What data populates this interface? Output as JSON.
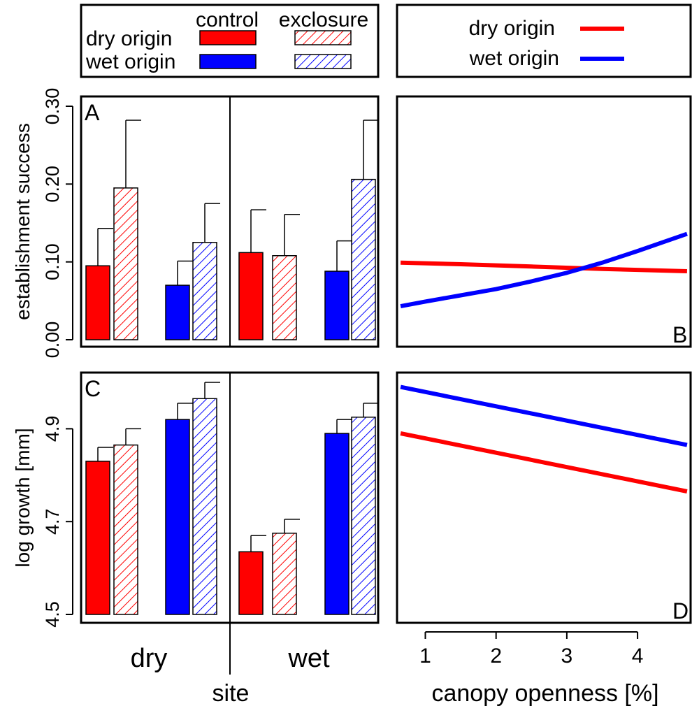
{
  "colors": {
    "dry": "#ff0000",
    "wet": "#0000ff"
  },
  "legend_left": {
    "col_control": "control",
    "col_exclosure": "exclosure",
    "row_dry": "dry origin",
    "row_wet": "wet origin"
  },
  "legend_right": {
    "row_dry": "dry origin",
    "row_wet": "wet origin"
  },
  "chart_data": [
    {
      "panel": "A",
      "type": "bar",
      "ylabel": "establishment success",
      "ylim": [
        0,
        0.3
      ],
      "yticks": [
        "0.00",
        "0.10",
        "0.20",
        "0.30"
      ],
      "yticks_values": [
        0,
        0.1,
        0.2,
        0.3
      ],
      "sites": [
        "dry",
        "wet"
      ],
      "groups": [
        "dry origin control",
        "dry origin exclosure",
        "wet origin control",
        "wet origin exclosure"
      ],
      "values": [
        [
          0.095,
          0.195,
          0.07,
          0.125
        ],
        [
          0.112,
          0.108,
          0.088,
          0.206
        ]
      ],
      "upper_error": [
        [
          0.143,
          0.282,
          0.101,
          0.175
        ],
        [
          0.167,
          0.161,
          0.127,
          0.282
        ]
      ]
    },
    {
      "panel": "B",
      "type": "line",
      "xlim": [
        0.6,
        4.75
      ],
      "ylim": [
        0,
        0.3
      ],
      "series": [
        {
          "name": "dry origin",
          "x": [
            0.65,
            1.5,
            2.5,
            3.5,
            4.7
          ],
          "y": [
            0.099,
            0.097,
            0.094,
            0.091,
            0.088
          ]
        },
        {
          "name": "wet origin",
          "x": [
            0.65,
            1.0,
            1.5,
            2.0,
            2.5,
            3.0,
            3.5,
            4.0,
            4.35,
            4.7
          ],
          "y": [
            0.043,
            0.049,
            0.057,
            0.065,
            0.075,
            0.086,
            0.099,
            0.114,
            0.125,
            0.136
          ]
        }
      ]
    },
    {
      "panel": "C",
      "type": "bar",
      "ylabel": "log growth [mm]",
      "ylim": [
        4.5,
        5.0
      ],
      "yticks": [
        "4.5",
        "4.7",
        "4.9"
      ],
      "yticks_values": [
        4.5,
        4.7,
        4.9
      ],
      "sites": [
        "dry",
        "wet"
      ],
      "groups": [
        "dry origin control",
        "dry origin exclosure",
        "wet origin control",
        "wet origin exclosure"
      ],
      "values": [
        [
          4.83,
          4.865,
          4.92,
          4.965
        ],
        [
          4.635,
          4.675,
          4.89,
          4.925
        ]
      ],
      "upper_error": [
        [
          4.86,
          4.9,
          4.955,
          5.0
        ],
        [
          4.67,
          4.705,
          4.92,
          4.955
        ]
      ],
      "xlabel": "site"
    },
    {
      "panel": "D",
      "type": "line",
      "xlabel": "canopy openness [%]",
      "xticks": [
        "1",
        "2",
        "3",
        "4"
      ],
      "xticks_values": [
        1,
        2,
        3,
        4
      ],
      "xlim": [
        0.6,
        4.75
      ],
      "ylim": [
        4.5,
        5.0
      ],
      "series": [
        {
          "name": "dry origin",
          "x": [
            0.65,
            4.7
          ],
          "y": [
            4.89,
            4.765
          ]
        },
        {
          "name": "wet origin",
          "x": [
            0.65,
            4.7
          ],
          "y": [
            4.99,
            4.865
          ]
        }
      ]
    }
  ]
}
